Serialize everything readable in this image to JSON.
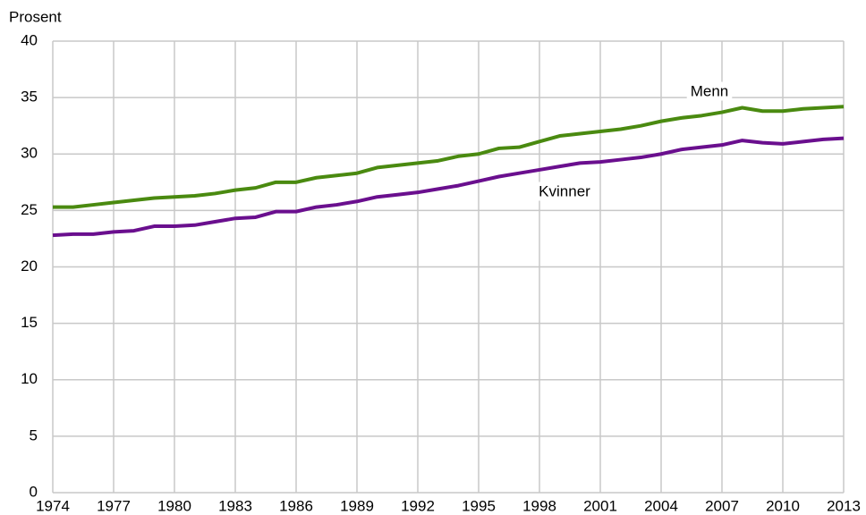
{
  "chart_data": {
    "type": "line",
    "y_label": "Prosent",
    "x": [
      1974,
      1975,
      1976,
      1977,
      1978,
      1979,
      1980,
      1981,
      1982,
      1983,
      1984,
      1985,
      1986,
      1987,
      1988,
      1989,
      1990,
      1991,
      1992,
      1993,
      1994,
      1995,
      1996,
      1997,
      1998,
      1999,
      2000,
      2001,
      2002,
      2003,
      2004,
      2005,
      2006,
      2007,
      2008,
      2009,
      2010,
      2011,
      2012,
      2013
    ],
    "series": [
      {
        "name": "Menn",
        "color": "#4a8a10",
        "values": [
          25.3,
          25.3,
          25.5,
          25.7,
          25.9,
          26.1,
          26.2,
          26.3,
          26.5,
          26.8,
          27.0,
          27.5,
          27.5,
          27.9,
          28.1,
          28.3,
          28.8,
          29.0,
          29.2,
          29.4,
          29.8,
          30.0,
          30.5,
          30.6,
          31.1,
          31.6,
          31.8,
          32.0,
          32.2,
          32.5,
          32.9,
          33.2,
          33.4,
          33.7,
          34.1,
          33.8,
          33.8,
          34.0,
          34.1,
          34.2
        ]
      },
      {
        "name": "Kvinner",
        "color": "#6a0f8e",
        "values": [
          22.8,
          22.9,
          22.9,
          23.1,
          23.2,
          23.6,
          23.6,
          23.7,
          24.0,
          24.3,
          24.4,
          24.9,
          24.9,
          25.3,
          25.5,
          25.8,
          26.2,
          26.4,
          26.6,
          26.9,
          27.2,
          27.6,
          28.0,
          28.3,
          28.6,
          28.9,
          29.2,
          29.3,
          29.5,
          29.7,
          30.0,
          30.4,
          30.6,
          30.8,
          31.2,
          31.0,
          30.9,
          31.1,
          31.3,
          31.4
        ]
      }
    ],
    "xlim": [
      1974,
      2013
    ],
    "xticks": [
      1974,
      1977,
      1980,
      1983,
      1986,
      1989,
      1992,
      1995,
      1998,
      2001,
      2004,
      2007,
      2010,
      2013
    ],
    "ylim": [
      0,
      40
    ],
    "yticks": [
      0,
      5,
      10,
      15,
      20,
      25,
      30,
      35,
      40
    ],
    "grid": true
  }
}
